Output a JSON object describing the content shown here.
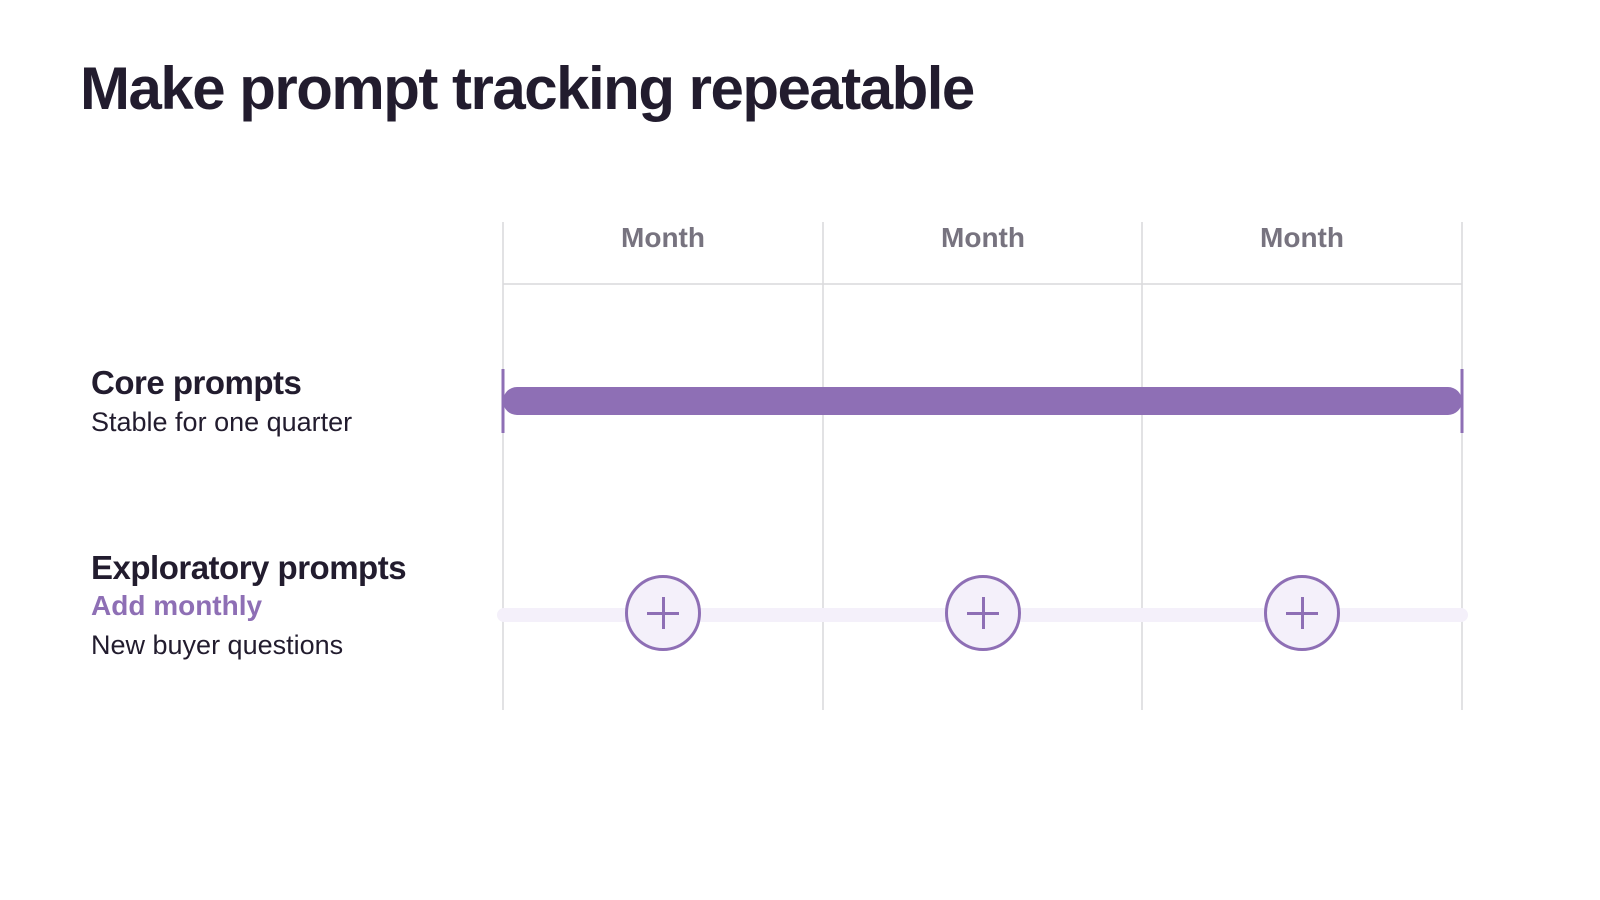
{
  "title": "Make prompt tracking repeatable",
  "colors": {
    "accent": "#8e6fb5",
    "accent_light": "#f4f0fa",
    "grid": "#d9d9dc",
    "muted_text": "#77737f",
    "dark_text": "#221c2e"
  },
  "columns": [
    "Month",
    "Month",
    "Month"
  ],
  "rows": [
    {
      "title": "Core prompts",
      "subtitle": "Stable for one quarter",
      "span": "full"
    },
    {
      "title": "Exploratory prompts",
      "accent_text": "Add monthly",
      "subtitle": "New buyer questions",
      "markers": [
        "plus-icon",
        "plus-icon",
        "plus-icon"
      ]
    }
  ]
}
